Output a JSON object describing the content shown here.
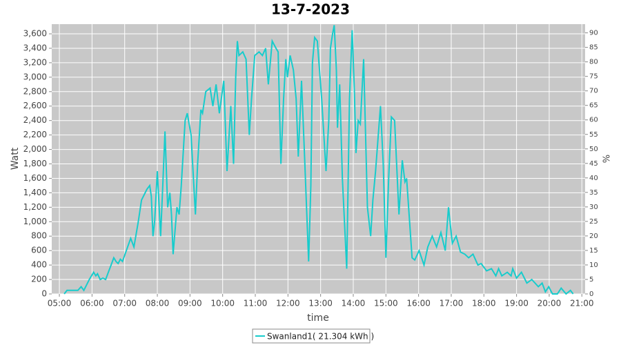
{
  "chart_data": {
    "type": "line",
    "title": "13-7-2023",
    "x_label": "time",
    "y_label": "Watt",
    "y2_label": "%",
    "xlim": [
      "04:46",
      "21:06"
    ],
    "xticks": [
      "05:00",
      "06:00",
      "07:00",
      "08:00",
      "09:00",
      "10:00",
      "11:00",
      "12:00",
      "13:00",
      "14:00",
      "15:00",
      "16:00",
      "17:00",
      "18:00",
      "19:00",
      "20:00",
      "21:00"
    ],
    "ylim": [
      0,
      3734
    ],
    "yticks": [
      0,
      200,
      400,
      600,
      800,
      {
        "value": 1000,
        "label": "1,000"
      },
      {
        "value": 1200,
        "label": "1,200"
      },
      {
        "value": 1400,
        "label": "1,400"
      },
      {
        "value": 1600,
        "label": "1,600"
      },
      {
        "value": 1800,
        "label": "1,800"
      },
      {
        "value": 2000,
        "label": "2,000"
      },
      {
        "value": 2200,
        "label": "2,200"
      },
      {
        "value": 2400,
        "label": "2,400"
      },
      {
        "value": 2600,
        "label": "2,600"
      },
      {
        "value": 2800,
        "label": "2,800"
      },
      {
        "value": 3000,
        "label": "3,000"
      },
      {
        "value": 3200,
        "label": "3,200"
      },
      {
        "value": 3400,
        "label": "3,400"
      },
      {
        "value": 3600,
        "label": "3,600"
      }
    ],
    "y2lim": [
      0,
      93
    ],
    "y2ticks": [
      0,
      5,
      10,
      15,
      20,
      25,
      30,
      35,
      40,
      45,
      50,
      55,
      60,
      65,
      70,
      75,
      80,
      85,
      90
    ],
    "grid": true,
    "legend": "bottom",
    "x": [
      "05:09",
      "05:14",
      "05:34",
      "05:40",
      "05:45",
      "05:55",
      "06:03",
      "06:07",
      "06:10",
      "06:15",
      "06:20",
      "06:25",
      "06:30",
      "06:35",
      "06:40",
      "06:44",
      "06:48",
      "06:52",
      "06:56",
      "07:11",
      "07:17",
      "07:25",
      "07:31",
      "07:41",
      "07:46",
      "07:49",
      "07:52",
      "07:55",
      "08:00",
      "08:06",
      "08:10",
      "08:14",
      "08:19",
      "08:23",
      "08:26",
      "08:29",
      "08:36",
      "08:40",
      "08:44",
      "08:51",
      "08:55",
      "09:02",
      "09:10",
      "09:14",
      "09:20",
      "09:23",
      "09:29",
      "09:37",
      "09:42",
      "09:48",
      "09:54",
      "10:02",
      "10:08",
      "10:15",
      "10:20",
      "10:24",
      "10:27",
      "10:30",
      "10:37",
      "10:43",
      "10:49",
      "10:53",
      "10:59",
      "11:07",
      "11:13",
      "11:19",
      "11:24",
      "11:31",
      "11:38",
      "11:42",
      "11:47",
      "11:52",
      "11:56",
      "11:59",
      "12:04",
      "12:10",
      "12:15",
      "12:19",
      "12:25",
      "12:30",
      "12:38",
      "12:42",
      "12:45",
      "12:49",
      "12:54",
      "13:02",
      "13:10",
      "13:15",
      "13:18",
      "13:22",
      "13:25",
      "13:29",
      "13:31",
      "13:35",
      "13:40",
      "13:48",
      "13:53",
      "13:58",
      "14:02",
      "14:05",
      "14:09",
      "14:13",
      "14:19",
      "14:26",
      "14:32",
      "14:36",
      "14:41",
      "14:50",
      "14:55",
      "15:00",
      "15:05",
      "15:10",
      "15:16",
      "15:24",
      "15:30",
      "15:35",
      "15:38",
      "15:48",
      "15:53",
      "16:01",
      "16:10",
      "16:17",
      "16:25",
      "16:33",
      "16:41",
      "16:49",
      "16:55",
      "17:02",
      "17:09",
      "17:17",
      "17:25",
      "17:32",
      "17:40",
      "17:49",
      "17:55",
      "18:05",
      "18:14",
      "18:22",
      "18:27",
      "18:33",
      "18:43",
      "18:50",
      "18:53",
      "19:00",
      "19:09",
      "19:19",
      "19:28",
      "19:40",
      "19:47",
      "19:53",
      "19:59",
      "20:06",
      "20:15",
      "20:22",
      "20:31",
      "20:39",
      "20:44"
    ],
    "series": [
      {
        "name": "Swanland1( 21.304 kWh )",
        "color": "#17cccc",
        "values": [
          0,
          50,
          50,
          100,
          50,
          200,
          300,
          250,
          280,
          200,
          220,
          200,
          300,
          400,
          500,
          450,
          420,
          480,
          450,
          770,
          650,
          1000,
          1300,
          1450,
          1500,
          1350,
          800,
          1000,
          1700,
          800,
          1500,
          2250,
          1200,
          1400,
          1100,
          550,
          1200,
          1100,
          1500,
          2400,
          2500,
          2200,
          1100,
          1800,
          2550,
          2500,
          2800,
          2850,
          2600,
          2900,
          2500,
          2950,
          1700,
          2600,
          1800,
          3000,
          3500,
          3300,
          3350,
          3250,
          2200,
          2700,
          3300,
          3350,
          3300,
          3400,
          2900,
          3500,
          3400,
          3350,
          1800,
          2700,
          3250,
          3000,
          3300,
          3100,
          2700,
          1900,
          2950,
          2000,
          450,
          1500,
          3200,
          3550,
          3500,
          2700,
          1700,
          2400,
          3400,
          3600,
          3720,
          3100,
          2300,
          2900,
          1600,
          350,
          2700,
          3650,
          2800,
          1950,
          2400,
          2350,
          3250,
          1200,
          800,
          1300,
          1700,
          2600,
          1800,
          500,
          1600,
          2450,
          2400,
          1100,
          1850,
          1550,
          1600,
          500,
          470,
          600,
          400,
          650,
          800,
          650,
          850,
          600,
          1200,
          700,
          800,
          580,
          550,
          500,
          550,
          400,
          420,
          320,
          350,
          250,
          350,
          250,
          300,
          250,
          350,
          220,
          300,
          150,
          200,
          100,
          150,
          30,
          100,
          0,
          0,
          80,
          0,
          50,
          0
        ]
      }
    ]
  }
}
